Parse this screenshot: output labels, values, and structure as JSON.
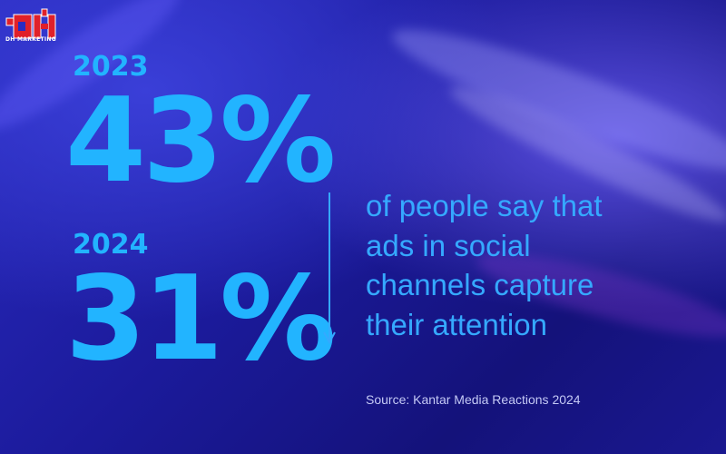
{
  "logo": {
    "text": "DH MARKETING",
    "color": "#e0202a"
  },
  "stats": [
    {
      "year": "2023",
      "value": "43%"
    },
    {
      "year": "2024",
      "value": "31%"
    }
  ],
  "trend": "down",
  "description": [
    "of people say that",
    "ads in social",
    "channels capture",
    "their attention"
  ],
  "source": "Source: Kantar Media Reactions 2024",
  "colors": {
    "accent": "#22b4ff",
    "background": "#1e1ca8"
  }
}
